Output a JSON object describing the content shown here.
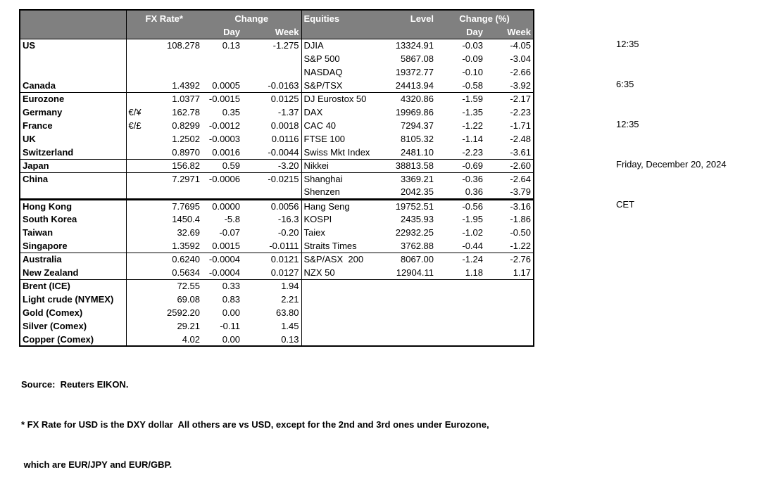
{
  "colors": {
    "header_bg": "#808080",
    "header_text": "#ffffff",
    "border": "#000000",
    "text": "#000000"
  },
  "header": {
    "fx_rate": "FX Rate*",
    "change": "Change",
    "day": "Day",
    "week": "Week",
    "equities": "Equities",
    "level": "Level",
    "change_pct": "Change (%)"
  },
  "clock": {
    "lines": [
      "12:35",
      "6:35",
      "12:35",
      "Friday, December 20, 2024",
      "CET"
    ]
  },
  "footnotes": [
    "Source:  Reuters EIKON.",
    "* FX Rate for USD is the DXY dollar  All others are vs USD, except for the 2nd and 3rd ones under Eurozone,",
    " which are EUR/JPY and EUR/GBP."
  ],
  "table": {
    "rows": [
      {
        "country": "US",
        "sym": "",
        "rate": "108.278",
        "day": "0.13",
        "week": "-1.275",
        "eq": "DJIA",
        "level": "13324.91",
        "eq_day": "-0.03",
        "eq_week": "-4.05",
        "indent": false,
        "sep": "none"
      },
      {
        "country": "",
        "sym": "",
        "rate": "",
        "day": "",
        "week": "",
        "eq": "S&P 500",
        "level": "5867.08",
        "eq_day": "-0.09",
        "eq_week": "-3.04",
        "indent": false,
        "sep": "none"
      },
      {
        "country": "",
        "sym": "",
        "rate": "",
        "day": "",
        "week": "",
        "eq": "NASDAQ",
        "level": "19372.77",
        "eq_day": "-0.10",
        "eq_week": "-2.66",
        "indent": false,
        "sep": "none"
      },
      {
        "country": "Canada",
        "sym": "",
        "rate": "1.4392",
        "day": "0.0005",
        "week": "-0.0163",
        "eq": "S&P/TSX",
        "level": "24413.94",
        "eq_day": "-0.58",
        "eq_week": "-3.92",
        "indent": false,
        "sep": "thin"
      },
      {
        "country": "Eurozone",
        "sym": "",
        "rate": "1.0377",
        "day": "-0.0015",
        "week": "0.0125",
        "eq": "DJ Eurostox 50",
        "level": "4320.86",
        "eq_day": "-1.59",
        "eq_week": "-2.17",
        "indent": false,
        "sep": "none"
      },
      {
        "country": "Germany",
        "sym": "€/¥",
        "rate": "162.78",
        "day": "0.35",
        "week": "-1.37",
        "eq": "DAX",
        "level": "19969.86",
        "eq_day": "-1.35",
        "eq_week": "-2.23",
        "indent": true,
        "sep": "none"
      },
      {
        "country": "France",
        "sym": "€/£",
        "rate": "0.8299",
        "day": "-0.0012",
        "week": "0.0018",
        "eq": "CAC 40",
        "level": "7294.37",
        "eq_day": "-1.22",
        "eq_week": "-1.71",
        "indent": true,
        "sep": "none"
      },
      {
        "country": "UK",
        "sym": "",
        "rate": "1.2502",
        "day": "-0.0003",
        "week": "0.0116",
        "eq": "FTSE 100",
        "level": "8105.32",
        "eq_day": "-1.14",
        "eq_week": "-2.48",
        "indent": false,
        "sep": "none"
      },
      {
        "country": "Switzerland",
        "sym": "",
        "rate": "0.8970",
        "day": "0.0016",
        "week": "-0.0044",
        "eq": "Swiss Mkt Index",
        "level": "2481.10",
        "eq_day": "-2.23",
        "eq_week": "-3.61",
        "indent": false,
        "sep": "thin"
      },
      {
        "country": "Japan",
        "sym": "",
        "rate": "156.82",
        "day": "0.59",
        "week": "-3.20",
        "eq": "Nikkei",
        "level": "38813.58",
        "eq_day": "-0.69",
        "eq_week": "-2.60",
        "indent": false,
        "sep": "thin"
      },
      {
        "country": "China",
        "sym": "",
        "rate": "7.2971",
        "day": "-0.0006",
        "week": "-0.0215",
        "eq": "Shanghai",
        "level": "3369.21",
        "eq_day": "-0.36",
        "eq_week": "-2.64",
        "indent": false,
        "sep": "none"
      },
      {
        "country": "",
        "sym": "",
        "rate": "",
        "day": "",
        "week": "",
        "eq": "Shenzen",
        "level": "2042.35",
        "eq_day": "0.36",
        "eq_week": "-3.79",
        "indent": false,
        "sep": "thick"
      },
      {
        "country": "Hong Kong",
        "sym": "",
        "rate": "7.7695",
        "day": "0.0000",
        "week": "0.0056",
        "eq": "Hang Seng",
        "level": "19752.51",
        "eq_day": "-0.56",
        "eq_week": "-3.16",
        "indent": false,
        "sep": "none"
      },
      {
        "country": "South Korea",
        "sym": "",
        "rate": "1450.4",
        "day": "-5.8",
        "week": "-16.3",
        "eq": "KOSPI",
        "level": "2435.93",
        "eq_day": "-1.95",
        "eq_week": "-1.86",
        "indent": false,
        "sep": "none"
      },
      {
        "country": "Taiwan",
        "sym": "",
        "rate": "32.69",
        "day": "-0.07",
        "week": "-0.20",
        "eq": "Taiex",
        "level": "22932.25",
        "eq_day": "-1.02",
        "eq_week": "-0.50",
        "indent": false,
        "sep": "none"
      },
      {
        "country": "Singapore",
        "sym": "",
        "rate": "1.3592",
        "day": "0.0015",
        "week": "-0.0111",
        "eq": "Straits Times",
        "level": "3762.88",
        "eq_day": "-0.44",
        "eq_week": "-1.22",
        "indent": false,
        "sep": "thin"
      },
      {
        "country": "Australia",
        "sym": "",
        "rate": "0.6240",
        "day": "-0.0004",
        "week": "0.0121",
        "eq": "S&P/ASX  200",
        "level": "8067.00",
        "eq_day": "-1.24",
        "eq_week": "-2.76",
        "indent": false,
        "sep": "none"
      },
      {
        "country": "New Zealand",
        "sym": "",
        "rate": "0.5634",
        "day": "-0.0004",
        "week": "0.0127",
        "eq": "NZX 50",
        "level": "12904.11",
        "eq_day": "1.18",
        "eq_week": "1.17",
        "indent": false,
        "sep": "thin"
      },
      {
        "country": "Brent (ICE)",
        "sym": "",
        "rate": "72.55",
        "day": "0.33",
        "week": "1.94",
        "eq": "",
        "level": "",
        "eq_day": "",
        "eq_week": "",
        "indent": false,
        "sep": "none"
      },
      {
        "country": "Light crude (NYMEX)",
        "sym": "",
        "rate": "69.08",
        "day": "0.83",
        "week": "2.21",
        "eq": "",
        "level": "",
        "eq_day": "",
        "eq_week": "",
        "indent": false,
        "sep": "none"
      },
      {
        "country": "Gold (Comex)",
        "sym": "",
        "rate": "2592.20",
        "day": "0.00",
        "week": "63.80",
        "eq": "",
        "level": "",
        "eq_day": "",
        "eq_week": "",
        "indent": false,
        "sep": "none"
      },
      {
        "country": "Silver (Comex)",
        "sym": "",
        "rate": "29.21",
        "day": "-0.11",
        "week": "1.45",
        "eq": "",
        "level": "",
        "eq_day": "",
        "eq_week": "",
        "indent": false,
        "sep": "none"
      },
      {
        "country": "Copper (Comex)",
        "sym": "",
        "rate": "4.02",
        "day": "0.00",
        "week": "0.13",
        "eq": "",
        "level": "",
        "eq_day": "",
        "eq_week": "",
        "indent": false,
        "sep": "none"
      }
    ]
  }
}
